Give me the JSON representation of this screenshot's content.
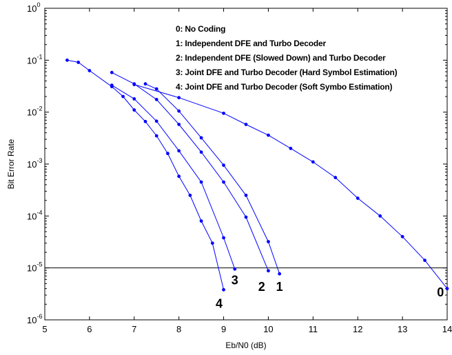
{
  "chart_data": {
    "type": "line",
    "title": "",
    "xlabel": "Eb/N0 (dB)",
    "ylabel": "Bit Error Rate",
    "xlim": [
      5,
      14
    ],
    "ylim": [
      1e-06,
      1
    ],
    "yscale": "log",
    "grid": false,
    "legend_position": "top-right",
    "x_ticks": [
      "5",
      "6",
      "7",
      "8",
      "9",
      "10",
      "11",
      "12",
      "13",
      "14"
    ],
    "y_ticks": [
      {
        "base": "10",
        "exp": "0",
        "value": 1
      },
      {
        "base": "10",
        "exp": "-1",
        "value": 0.1
      },
      {
        "base": "10",
        "exp": "-2",
        "value": 0.01
      },
      {
        "base": "10",
        "exp": "-3",
        "value": 0.001
      },
      {
        "base": "10",
        "exp": "-4",
        "value": 0.0001
      },
      {
        "base": "10",
        "exp": "-5",
        "value": 1e-05
      },
      {
        "base": "10",
        "exp": "-6",
        "value": 1e-06
      }
    ],
    "legend": [
      "0: No Coding",
      "1: Independent  DFE and Turbo Decoder",
      "2: Independent DFE (Slowed Down) and  Turbo Decoder",
      "3: Joint DFE and Turbo Decoder (Hard Symbol Estimation)",
      "4: Joint DFE and Turbo Decoder (Soft Symbo Estimation)"
    ],
    "reference_line": {
      "y": 1e-05
    },
    "line_color": "#0000ff",
    "series": [
      {
        "label": "0",
        "x": [
          7,
          8,
          9,
          9.5,
          10,
          10.5,
          11,
          11.5,
          12,
          12.5,
          13,
          13.5,
          14
        ],
        "y": [
          0.034,
          0.019,
          0.0095,
          0.0058,
          0.0036,
          0.002,
          0.0011,
          0.00055,
          0.00022,
          0.0001,
          4e-05,
          1.4e-05,
          4e-06
        ]
      },
      {
        "label": "1",
        "x": [
          7.25,
          7.5,
          8,
          8.5,
          9,
          9.5,
          10,
          10.25
        ],
        "y": [
          0.035,
          0.028,
          0.0105,
          0.0032,
          0.00095,
          0.00025,
          3.2e-05,
          7.7e-06
        ]
      },
      {
        "label": "2",
        "x": [
          6.5,
          7,
          7.5,
          8,
          8.5,
          9,
          9.5,
          10
        ],
        "y": [
          0.058,
          0.035,
          0.0175,
          0.0058,
          0.0017,
          0.00045,
          9.5e-05,
          8.8e-06
        ]
      },
      {
        "label": "3",
        "x": [
          6.5,
          7,
          7.5,
          8,
          8.5,
          9,
          9.25
        ],
        "y": [
          0.033,
          0.018,
          0.0067,
          0.0018,
          0.00045,
          3.8e-05,
          9.5e-06
        ]
      },
      {
        "label": "4",
        "x": [
          5.5,
          5.75,
          6,
          6.5,
          6.75,
          7,
          7.25,
          7.5,
          7.75,
          8,
          8.25,
          8.5,
          8.75,
          9
        ],
        "y": [
          0.1,
          0.091,
          0.063,
          0.031,
          0.02,
          0.011,
          0.0066,
          0.0035,
          0.0016,
          0.00058,
          0.00025,
          8e-05,
          3e-05,
          3.8e-06
        ]
      }
    ],
    "curve_labels": [
      {
        "text": "0",
        "x": 13.85,
        "y": 3.5e-06
      },
      {
        "text": "1",
        "x": 10.25,
        "y": 4.5e-06
      },
      {
        "text": "2",
        "x": 9.85,
        "y": 4.5e-06
      },
      {
        "text": "3",
        "x": 9.25,
        "y": 6e-06
      },
      {
        "text": "4",
        "x": 8.9,
        "y": 2.1e-06
      }
    ]
  }
}
